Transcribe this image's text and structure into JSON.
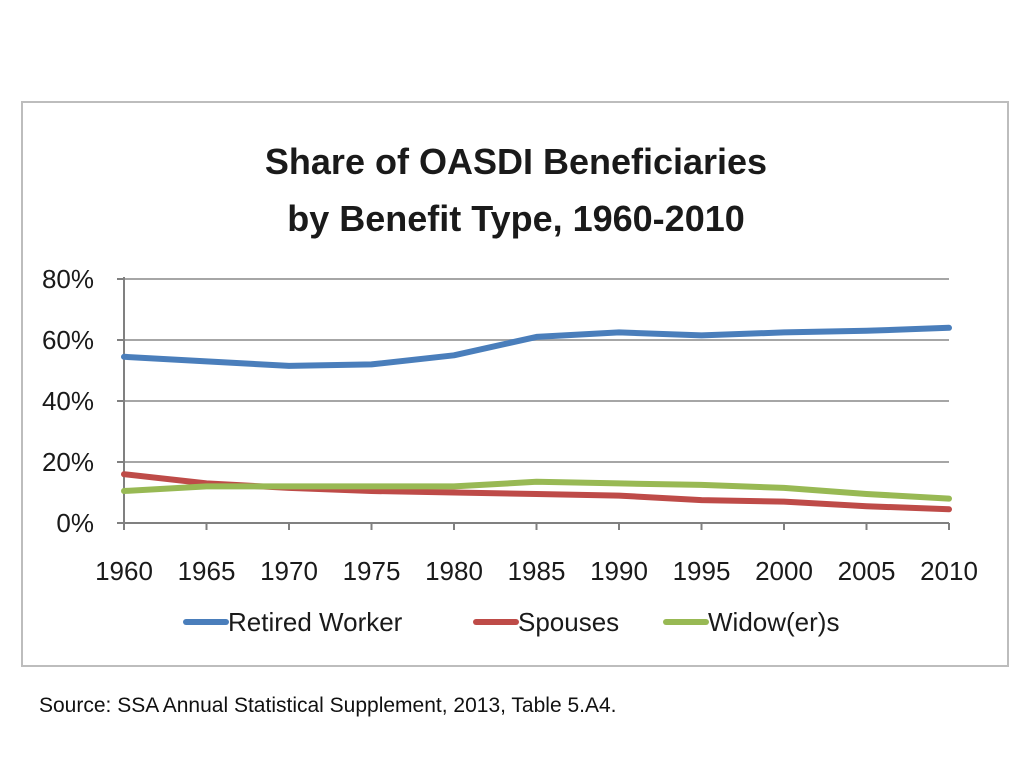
{
  "chart_data": {
    "type": "line",
    "title_lines": [
      "Share of OASDI Beneficiaries",
      "by Benefit Type, 1960-2010"
    ],
    "x": [
      "1960",
      "1965",
      "1970",
      "1975",
      "1980",
      "1985",
      "1990",
      "1995",
      "2000",
      "2005",
      "2010"
    ],
    "ylim": [
      0,
      80
    ],
    "yticks": [
      0,
      20,
      40,
      60,
      80
    ],
    "ytick_labels": [
      "0%",
      "20%",
      "40%",
      "60%",
      "80%"
    ],
    "grid": true,
    "legend_position": "bottom",
    "series": [
      {
        "name": "Retired Worker",
        "color": "#4a7ebb",
        "values": [
          54.5,
          53,
          51.5,
          52,
          55,
          61,
          62.5,
          61.5,
          62.5,
          63,
          64
        ]
      },
      {
        "name": "Spouses",
        "color": "#be4b48",
        "values": [
          16,
          13,
          11.5,
          10.5,
          10,
          9.5,
          9,
          7.5,
          7,
          5.5,
          4.5
        ]
      },
      {
        "name": "Widow(er)s",
        "color": "#98b954",
        "values": [
          10.5,
          12,
          12,
          12,
          12,
          13.5,
          13,
          12.5,
          11.5,
          9.5,
          8
        ]
      }
    ]
  },
  "source": "Source: SSA Annual Statistical Supplement, 2013, Table 5.A4."
}
